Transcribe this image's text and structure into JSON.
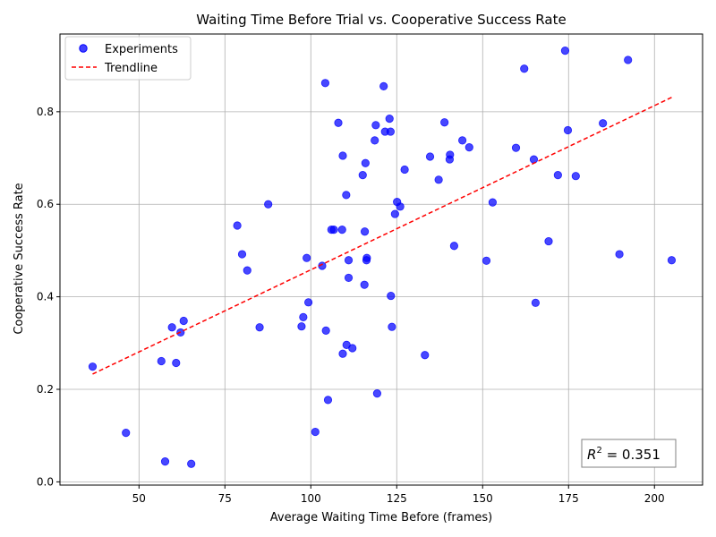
{
  "chart_data": {
    "type": "scatter",
    "title": "Waiting Time Before Trial vs. Cooperative Success Rate",
    "xlabel": "Average Waiting Time Before (frames)",
    "ylabel": "Cooperative Success Rate",
    "xlim": [
      27,
      214
    ],
    "ylim": [
      -0.007,
      0.968
    ],
    "xticks": [
      50,
      75,
      100,
      125,
      150,
      175,
      200
    ],
    "yticks": [
      0.0,
      0.2,
      0.4,
      0.6,
      0.8
    ],
    "ytick_labels": [
      "0.0",
      "0.2",
      "0.4",
      "0.6",
      "0.8"
    ],
    "grid": true,
    "legend": {
      "placement": "top-left",
      "entries": [
        {
          "name": "Experiments",
          "type": "scatter",
          "color": "#0000ff"
        },
        {
          "name": "Trendline",
          "type": "line",
          "color": "#ff0000"
        }
      ]
    },
    "annotation": {
      "prefix": "R",
      "sup": "2",
      "value": " = 0.351"
    },
    "series": [
      {
        "name": "Experiments",
        "color": "#0000ff",
        "points": [
          [
            36.5,
            0.249
          ],
          [
            46.2,
            0.106
          ],
          [
            56.5,
            0.261
          ],
          [
            57.6,
            0.044
          ],
          [
            59.6,
            0.334
          ],
          [
            60.8,
            0.257
          ],
          [
            62.1,
            0.323
          ],
          [
            63.0,
            0.348
          ],
          [
            65.2,
            0.039
          ],
          [
            78.6,
            0.554
          ],
          [
            80.0,
            0.492
          ],
          [
            81.5,
            0.457
          ],
          [
            85.1,
            0.334
          ],
          [
            87.6,
            0.6
          ],
          [
            97.3,
            0.336
          ],
          [
            97.8,
            0.356
          ],
          [
            98.8,
            0.484
          ],
          [
            99.3,
            0.388
          ],
          [
            101.3,
            0.108
          ],
          [
            103.3,
            0.467
          ],
          [
            104.2,
            0.862
          ],
          [
            104.4,
            0.327
          ],
          [
            105.0,
            0.177
          ],
          [
            106.0,
            0.545
          ],
          [
            106.7,
            0.545
          ],
          [
            108.0,
            0.776
          ],
          [
            109.1,
            0.545
          ],
          [
            109.3,
            0.277
          ],
          [
            109.3,
            0.705
          ],
          [
            110.3,
            0.62
          ],
          [
            110.4,
            0.296
          ],
          [
            111.0,
            0.441
          ],
          [
            111.0,
            0.479
          ],
          [
            112.1,
            0.289
          ],
          [
            115.1,
            0.663
          ],
          [
            115.6,
            0.426
          ],
          [
            115.7,
            0.541
          ],
          [
            115.9,
            0.689
          ],
          [
            116.2,
            0.479
          ],
          [
            116.3,
            0.484
          ],
          [
            118.6,
            0.738
          ],
          [
            118.9,
            0.771
          ],
          [
            119.3,
            0.191
          ],
          [
            121.2,
            0.855
          ],
          [
            121.6,
            0.757
          ],
          [
            122.9,
            0.785
          ],
          [
            123.2,
            0.757
          ],
          [
            123.3,
            0.402
          ],
          [
            123.6,
            0.335
          ],
          [
            124.5,
            0.579
          ],
          [
            125.1,
            0.605
          ],
          [
            126.0,
            0.595
          ],
          [
            127.3,
            0.675
          ],
          [
            133.2,
            0.274
          ],
          [
            134.7,
            0.703
          ],
          [
            137.2,
            0.653
          ],
          [
            138.9,
            0.777
          ],
          [
            140.4,
            0.697
          ],
          [
            140.5,
            0.707
          ],
          [
            141.7,
            0.51
          ],
          [
            144.1,
            0.738
          ],
          [
            146.1,
            0.723
          ],
          [
            151.1,
            0.478
          ],
          [
            152.9,
            0.604
          ],
          [
            159.7,
            0.722
          ],
          [
            162.1,
            0.893
          ],
          [
            164.9,
            0.697
          ],
          [
            165.4,
            0.387
          ],
          [
            169.2,
            0.52
          ],
          [
            171.9,
            0.663
          ],
          [
            174.0,
            0.932
          ],
          [
            174.8,
            0.76
          ],
          [
            177.1,
            0.661
          ],
          [
            185.0,
            0.775
          ],
          [
            189.8,
            0.492
          ],
          [
            192.3,
            0.912
          ],
          [
            205.0,
            0.479
          ]
        ]
      },
      {
        "name": "Trendline",
        "color": "#ff0000",
        "points": [
          [
            36.5,
            0.233
          ],
          [
            205.0,
            0.831
          ]
        ]
      }
    ]
  }
}
